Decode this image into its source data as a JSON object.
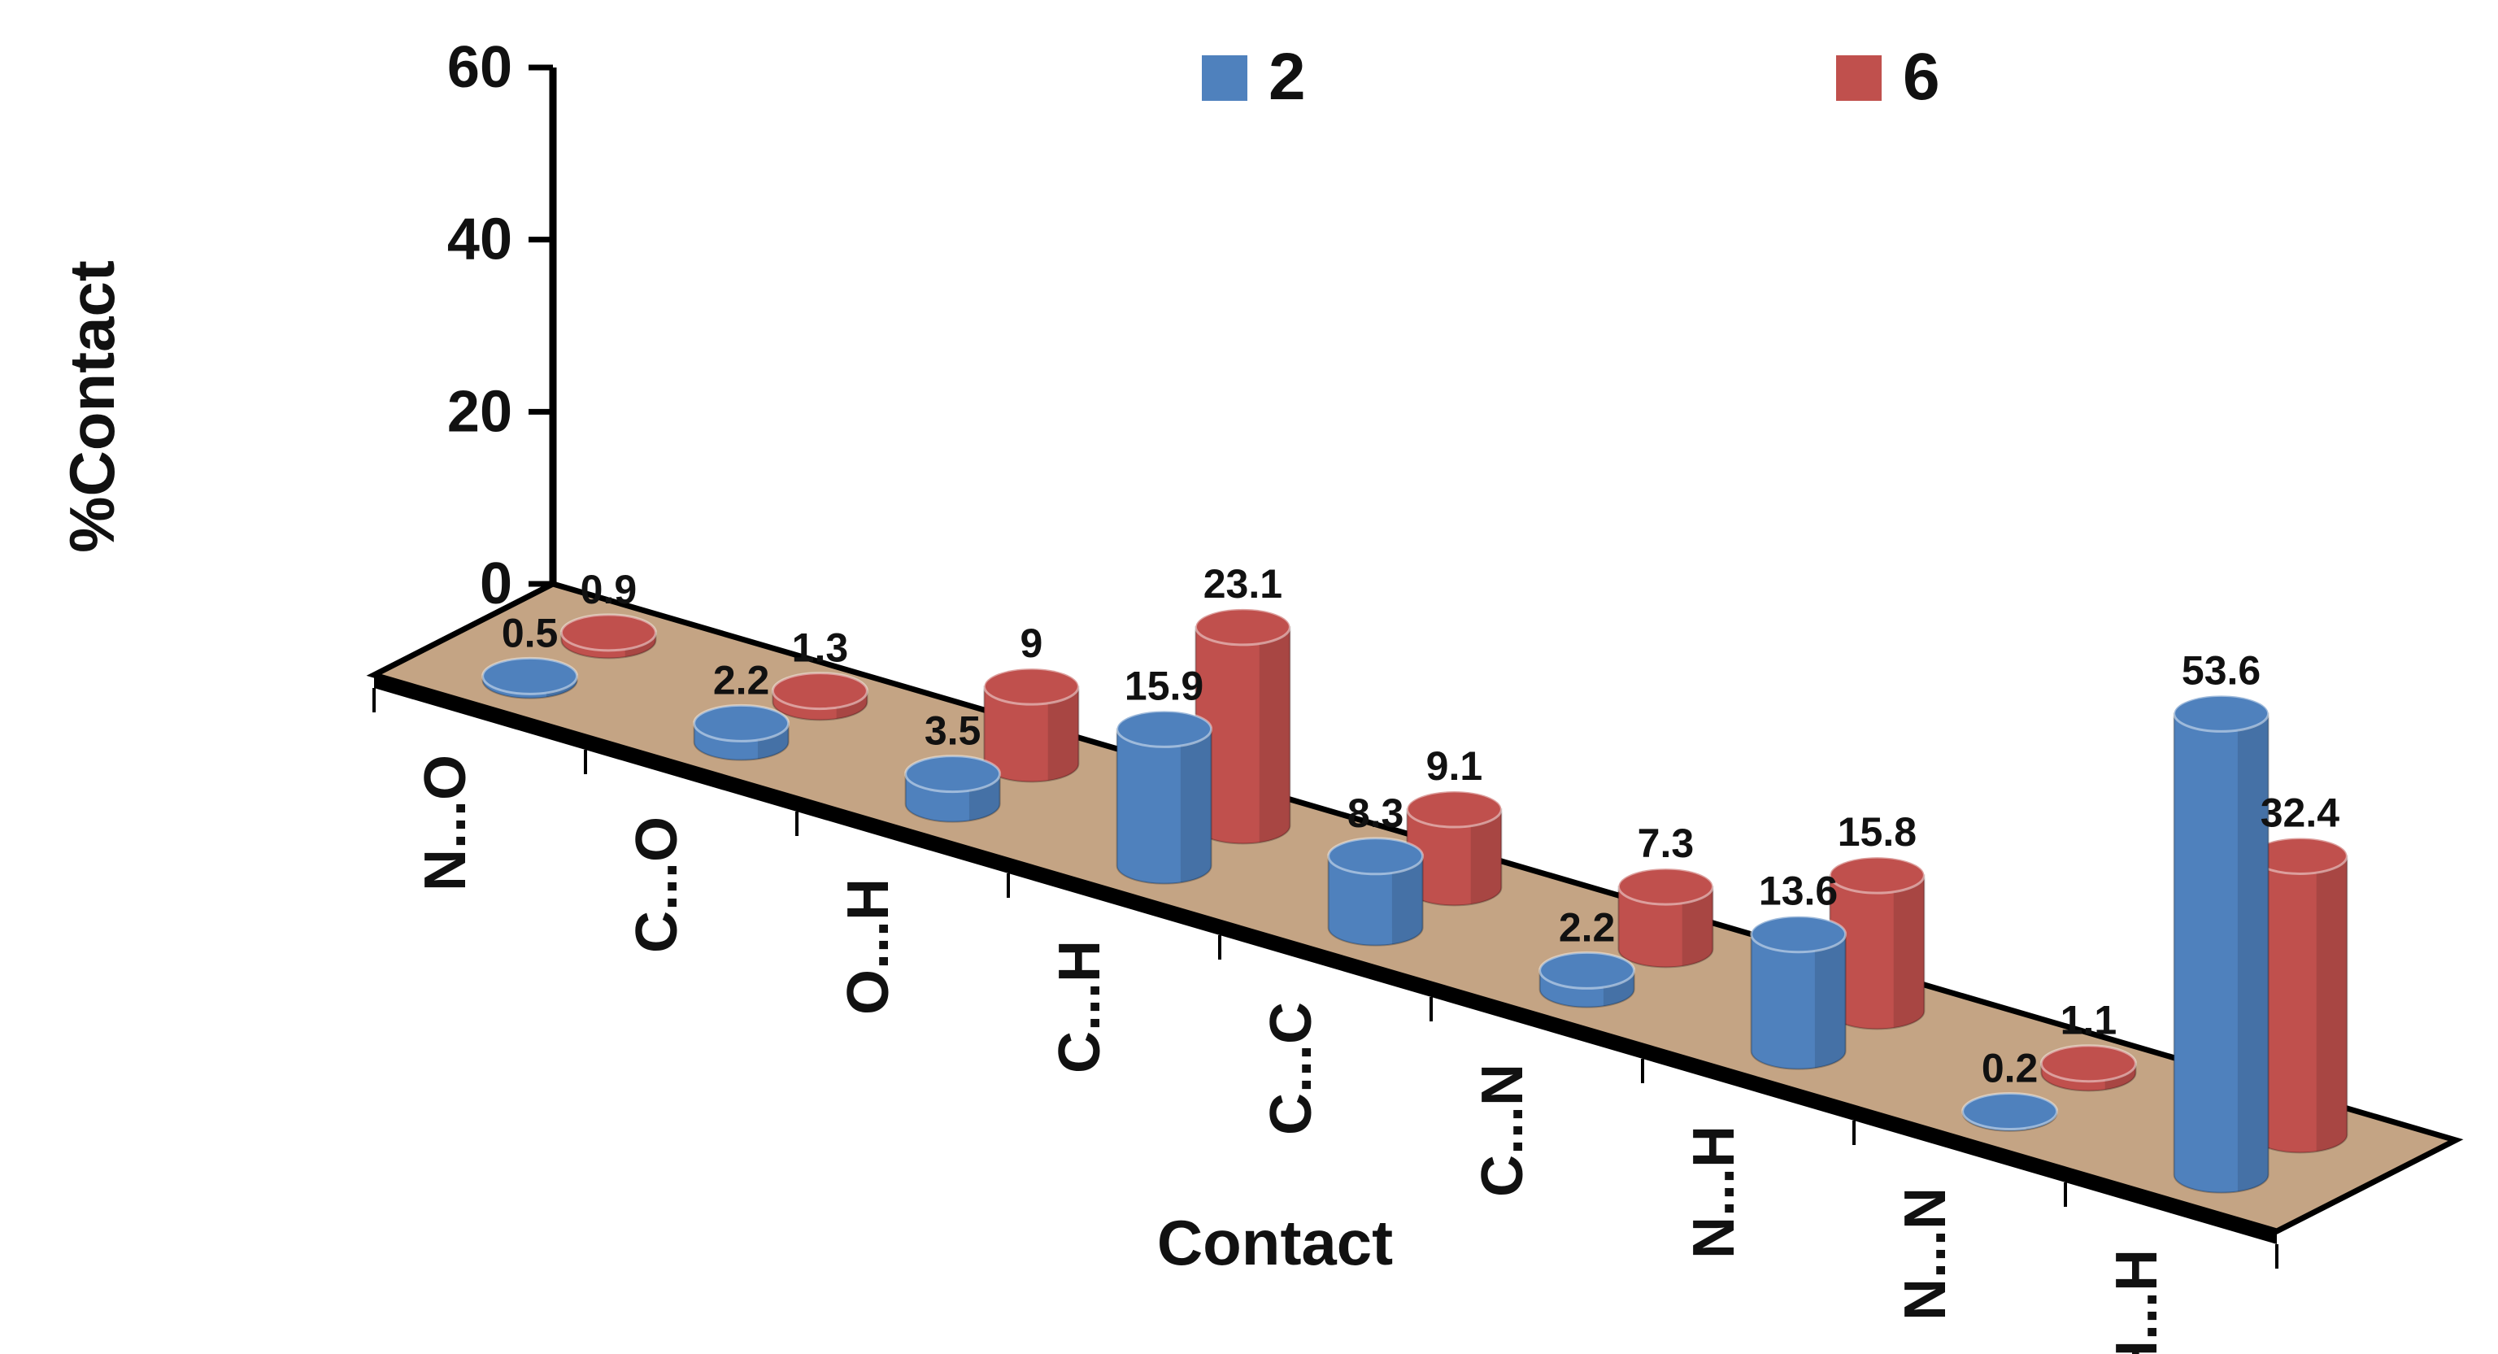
{
  "chart_data": {
    "type": "bar",
    "style": "3d-cylinder",
    "categories": [
      "N...O",
      "C...O",
      "O...H",
      "C...H",
      "C...C",
      "C...N",
      "N...H",
      "N...N",
      "H...H"
    ],
    "series": [
      {
        "name": "2",
        "color": "#4f81bd",
        "values": [
          0.5,
          2.2,
          3.5,
          15.9,
          8.3,
          2.2,
          13.6,
          0.2,
          53.6
        ]
      },
      {
        "name": "6",
        "color": "#c0504d",
        "values": [
          0.9,
          1.3,
          9,
          23.1,
          9.1,
          7.3,
          15.8,
          1.1,
          32.4
        ]
      }
    ],
    "xlabel": "Contact",
    "ylabel": "%Contact",
    "ylim": [
      0,
      60
    ],
    "yticks": [
      0,
      20,
      40,
      60
    ],
    "legend_position": "top",
    "floor_color": "#c4a484"
  }
}
